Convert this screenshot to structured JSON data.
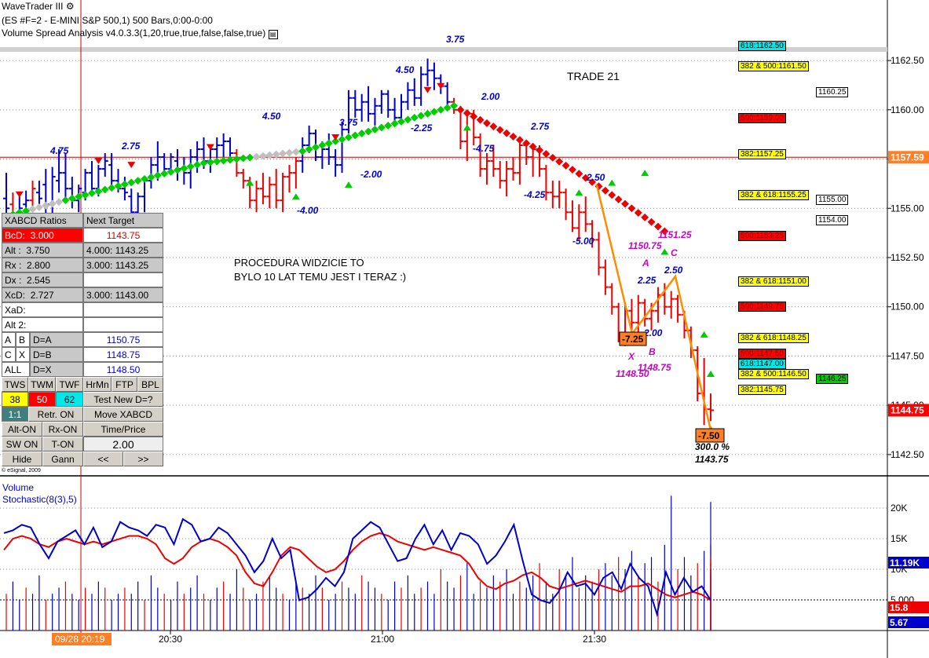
{
  "header": {
    "title": "WaveTrader III",
    "line2": "(ES #F=2 - E-MINI S&P 500,1) 500 Bars,0:00-0:00",
    "line3": "Volume Spread Analysis v4.0.3.3(1,20,true,true,false,false,true)"
  },
  "copyright": "© eSignal, 2009",
  "annotations": {
    "trade": "TRADE 21",
    "note1": "PROCEDURA WIDZICIE TO",
    "note2": "BYLO 10 LAT TEMU JEST I TERAZ :)"
  },
  "price_axis": {
    "ticks": [
      "1162.50",
      "1160.00",
      "1157.50",
      "1155.00",
      "1152.50",
      "1150.00",
      "1147.50",
      "1145.00",
      "1142.50"
    ],
    "current": "1157.59",
    "last": "1144.75"
  },
  "volume_axis": {
    "ticks": [
      "20K",
      "15K",
      "10K",
      "5,000"
    ],
    "vol_value": "11.19K",
    "stoch1": "15.8",
    "stoch2": "5.67"
  },
  "time_axis": {
    "ticks": [
      "20:30",
      "21:00",
      "21:30"
    ],
    "cursor": "09/28 20:19"
  },
  "lower_labels": {
    "volume": "Volume",
    "stoch": "Stochastic(8(3),5)"
  },
  "fib_tags": [
    {
      "text": "618:1162.50",
      "bg": "#00e8e8"
    },
    {
      "text": "382 & 500:1161.50",
      "bg": "#ffff00"
    },
    {
      "text": "1160.25",
      "bg": "#ffffff"
    },
    {
      "text": "500:1159.00",
      "bg": "#ff0000"
    },
    {
      "text": "382:1157.25",
      "bg": "#ffff00"
    },
    {
      "text": "382 & 618:1155.25",
      "bg": "#ffff00"
    },
    {
      "text": "1155.00",
      "bg": "#ffffff"
    },
    {
      "text": "1154.00",
      "bg": "#ffffff"
    },
    {
      "text": "500:1153.25",
      "bg": "#ff0000"
    },
    {
      "text": "382 & 618:1151.00",
      "bg": "#ffff00"
    },
    {
      "text": "500:1149.75",
      "bg": "#ff0000"
    },
    {
      "text": "382 & 618:1148.25",
      "bg": "#ffff00"
    },
    {
      "text": "500:1147.50",
      "bg": "#ff0000"
    },
    {
      "text": "618:1147.00",
      "bg": "#00e8e8"
    },
    {
      "text": "382 & 500:1146.50",
      "bg": "#ffff00"
    },
    {
      "text": "1146.25",
      "bg": "#00cc00"
    },
    {
      "text": "382:1145.75",
      "bg": "#ffff00"
    }
  ],
  "panel": {
    "h1": "XABCD Ratios",
    "h2": "Next Target",
    "bcd_label": "BcD:",
    "bcd_val": "3.000",
    "bcd_target": "1143.75",
    "alt_label": "Alt  :",
    "alt_val": "3.750",
    "alt_target": "4.000: 1143.25",
    "rx_label": "Rx   :",
    "rx_val": "2.800",
    "rx_target": "3.000: 1143.25",
    "dx_label": "Dx   :",
    "dx_val": "2.545",
    "xcd_label": "XcD:",
    "xcd_val": "2.727",
    "xcd_target": "3.000: 1143.00",
    "xad_label": "XaD:",
    "alt2_label": "Alt 2:",
    "a": "A",
    "b": "B",
    "da": "D=A",
    "da_val": "1150.75",
    "c": "C",
    "x": "X",
    "db": "D=B",
    "db_val": "1148.75",
    "all": "ALL",
    "dx2": "D=X",
    "dx_val2": "1148.50",
    "tws": "TWS",
    "twm": "TWM",
    "twf": "TWF",
    "hrmn": "HrMn",
    "ftp": "FTP",
    "bpl": "BPL",
    "n38": "38",
    "n50": "50",
    "n62": "62",
    "testd": "Test New D=?",
    "r11": "1:1",
    "retr": "Retr. ON",
    "move": "Move XABCD",
    "alton": "Alt-ON",
    "rxon": "Rx-ON",
    "timeprice": "Time/Price",
    "swon": "SW ON",
    "ton": "T-ON",
    "tp_val": "2.00",
    "hide": "Hide",
    "gann": "Gann",
    "prev": "<<",
    "next": ">>"
  },
  "chart_data": {
    "type": "bar",
    "symbol": "ES #F=2 - E-MINI S&P 500",
    "ylim": [
      1141.5,
      1163.5
    ],
    "ohlc_bars": [
      [
        1155.5,
        1154.2,
        1156.8,
        1155.0
      ],
      [
        1155.2,
        1154.0,
        1155.8,
        1154.5
      ],
      [
        1154.8,
        1154.2,
        1155.6,
        1155.0
      ],
      [
        1155.2,
        1154.6,
        1155.9,
        1155.4
      ],
      [
        1155.4,
        1154.8,
        1156.4,
        1156.0
      ],
      [
        1155.8,
        1155.0,
        1156.4,
        1155.5
      ],
      [
        1156.2,
        1154.4,
        1157.0,
        1155.2
      ],
      [
        1155.2,
        1154.6,
        1157.1,
        1156.6
      ],
      [
        1156.4,
        1155.8,
        1158.0,
        1156.8
      ],
      [
        1156.8,
        1155.4,
        1157.8,
        1156.0
      ],
      [
        1156.0,
        1155.0,
        1156.6,
        1155.4
      ],
      [
        1155.4,
        1154.8,
        1156.2,
        1156.0
      ],
      [
        1155.8,
        1155.4,
        1157.0,
        1156.8
      ],
      [
        1156.8,
        1155.6,
        1157.4,
        1156.0
      ],
      [
        1156.0,
        1155.6,
        1157.2,
        1157.0
      ],
      [
        1157.0,
        1156.6,
        1157.8,
        1157.4
      ],
      [
        1157.2,
        1156.0,
        1157.8,
        1156.4
      ],
      [
        1156.4,
        1155.8,
        1157.0,
        1156.0
      ],
      [
        1156.0,
        1155.4,
        1156.6,
        1155.8
      ],
      [
        1155.6,
        1154.4,
        1156.0,
        1154.8
      ],
      [
        1154.8,
        1154.2,
        1155.8,
        1155.6
      ],
      [
        1155.6,
        1154.8,
        1156.6,
        1156.4
      ],
      [
        1156.4,
        1156.0,
        1157.6,
        1157.2
      ],
      [
        1157.2,
        1156.4,
        1158.4,
        1157.6
      ],
      [
        1157.6,
        1156.6,
        1157.8,
        1157.0
      ],
      [
        1157.0,
        1156.8,
        1157.8,
        1157.6
      ],
      [
        1157.4,
        1156.4,
        1158.0,
        1157.0
      ],
      [
        1157.0,
        1156.2,
        1157.6,
        1156.8
      ],
      [
        1156.8,
        1156.0,
        1158.0,
        1157.6
      ],
      [
        1157.6,
        1156.8,
        1158.4,
        1158.0
      ],
      [
        1158.0,
        1157.0,
        1158.6,
        1157.4
      ],
      [
        1157.4,
        1156.8,
        1158.2,
        1158.0
      ],
      [
        1158.0,
        1157.2,
        1158.6,
        1158.2
      ],
      [
        1158.2,
        1157.6,
        1158.8,
        1158.4
      ],
      [
        1158.4,
        1157.6,
        1158.6,
        1157.8
      ],
      [
        1157.8,
        1156.6,
        1158.0,
        1156.8
      ],
      [
        1156.8,
        1156.0,
        1157.0,
        1156.4
      ],
      [
        1156.4,
        1155.0,
        1156.6,
        1155.4
      ],
      [
        1155.4,
        1154.8,
        1156.4,
        1156.0
      ],
      [
        1156.0,
        1155.2,
        1156.8,
        1155.6
      ],
      [
        1155.6,
        1155.0,
        1156.6,
        1156.2
      ],
      [
        1156.2,
        1155.0,
        1157.0,
        1155.4
      ],
      [
        1155.4,
        1154.8,
        1156.8,
        1156.6
      ],
      [
        1156.6,
        1155.8,
        1157.2,
        1156.8
      ],
      [
        1156.8,
        1156.0,
        1157.6,
        1157.4
      ],
      [
        1157.4,
        1156.8,
        1158.6,
        1158.2
      ],
      [
        1158.2,
        1157.8,
        1159.2,
        1158.8
      ],
      [
        1158.8,
        1157.4,
        1159.0,
        1157.6
      ],
      [
        1157.6,
        1157.0,
        1158.4,
        1158.0
      ],
      [
        1158.0,
        1157.2,
        1158.8,
        1157.6
      ],
      [
        1157.6,
        1156.6,
        1158.0,
        1157.2
      ],
      [
        1157.2,
        1156.8,
        1159.4,
        1159.0
      ],
      [
        1159.0,
        1158.8,
        1161.0,
        1160.6
      ],
      [
        1160.6,
        1159.6,
        1161.0,
        1160.0
      ],
      [
        1160.0,
        1159.4,
        1160.8,
        1160.4
      ],
      [
        1160.4,
        1159.4,
        1161.2,
        1159.8
      ],
      [
        1159.8,
        1159.2,
        1160.6,
        1160.2
      ],
      [
        1160.2,
        1159.8,
        1161.0,
        1160.8
      ],
      [
        1160.8,
        1159.6,
        1161.0,
        1160.0
      ],
      [
        1160.0,
        1159.2,
        1160.6,
        1159.6
      ],
      [
        1159.6,
        1159.4,
        1160.8,
        1160.4
      ],
      [
        1160.4,
        1160.0,
        1161.4,
        1161.0
      ],
      [
        1161.0,
        1160.2,
        1161.6,
        1160.6
      ],
      [
        1160.6,
        1160.2,
        1162.2,
        1161.8
      ],
      [
        1161.8,
        1161.2,
        1162.6,
        1162.0
      ],
      [
        1162.0,
        1161.0,
        1162.4,
        1161.6
      ],
      [
        1161.6,
        1160.8,
        1161.8,
        1161.2
      ],
      [
        1161.2,
        1160.2,
        1161.4,
        1160.4
      ],
      [
        1160.4,
        1159.8,
        1160.6,
        1160.0
      ],
      [
        1160.0,
        1158.0,
        1160.2,
        1158.4
      ],
      [
        1158.4,
        1157.4,
        1160.0,
        1159.8
      ],
      [
        1159.8,
        1158.2,
        1160.0,
        1158.6
      ],
      [
        1158.6,
        1156.6,
        1158.8,
        1157.0
      ],
      [
        1157.0,
        1156.2,
        1157.8,
        1157.4
      ],
      [
        1157.4,
        1156.6,
        1158.2,
        1157.0
      ],
      [
        1157.0,
        1156.0,
        1157.4,
        1156.4
      ],
      [
        1156.4,
        1155.6,
        1157.4,
        1157.0
      ],
      [
        1157.0,
        1156.4,
        1157.6,
        1156.8
      ],
      [
        1156.8,
        1156.2,
        1158.6,
        1158.2
      ],
      [
        1158.2,
        1157.2,
        1158.4,
        1157.6
      ],
      [
        1157.6,
        1156.6,
        1158.2,
        1158.0
      ],
      [
        1158.0,
        1156.6,
        1158.2,
        1157.0
      ],
      [
        1157.0,
        1155.4,
        1157.2,
        1155.8
      ],
      [
        1155.8,
        1155.0,
        1156.4,
        1155.6
      ],
      [
        1155.6,
        1155.0,
        1156.4,
        1155.8
      ],
      [
        1155.8,
        1154.4,
        1156.0,
        1154.8
      ],
      [
        1154.8,
        1153.8,
        1155.4,
        1154.0
      ],
      [
        1154.0,
        1153.4,
        1155.2,
        1154.8
      ],
      [
        1154.8,
        1153.8,
        1155.6,
        1154.2
      ],
      [
        1154.2,
        1153.0,
        1154.4,
        1153.4
      ],
      [
        1153.4,
        1151.6,
        1153.8,
        1152.0
      ],
      [
        1152.0,
        1150.6,
        1152.4,
        1151.0
      ],
      [
        1151.0,
        1149.6,
        1151.2,
        1150.0
      ],
      [
        1150.0,
        1148.2,
        1150.2,
        1148.6
      ],
      [
        1148.6,
        1148.0,
        1150.2,
        1149.8
      ],
      [
        1149.8,
        1148.8,
        1150.4,
        1149.2
      ],
      [
        1149.2,
        1148.6,
        1150.6,
        1150.2
      ],
      [
        1150.2,
        1149.0,
        1150.4,
        1149.4
      ],
      [
        1149.4,
        1148.8,
        1150.2,
        1149.8
      ],
      [
        1149.8,
        1149.2,
        1151.0,
        1150.6
      ],
      [
        1150.6,
        1149.6,
        1151.2,
        1150.0
      ],
      [
        1150.0,
        1149.4,
        1150.8,
        1150.4
      ],
      [
        1150.4,
        1149.2,
        1150.6,
        1149.6
      ],
      [
        1149.6,
        1148.4,
        1149.8,
        1148.8
      ],
      [
        1148.8,
        1147.4,
        1149.0,
        1147.8
      ],
      [
        1147.8,
        1145.2,
        1148.0,
        1145.6
      ],
      [
        1145.6,
        1144.0,
        1147.4,
        1144.8
      ],
      [
        1144.8,
        1144.2,
        1145.6,
        1144.75
      ]
    ],
    "bar_colors_note": "blue up-trend bars, red down-trend bars",
    "wave_labels": [
      {
        "t": "4.75",
        "c": "#0000cc"
      },
      {
        "t": "2.75",
        "c": "#0000cc"
      },
      {
        "t": "4.50",
        "c": "#0000cc"
      },
      {
        "t": "3.75",
        "c": "#0000cc"
      },
      {
        "t": "4.50",
        "c": "#0000cc"
      },
      {
        "t": "3.75",
        "c": "#0000cc"
      },
      {
        "t": "2.00",
        "c": "#0000cc"
      },
      {
        "t": "2.75",
        "c": "#0000cc"
      },
      {
        "t": "2.50",
        "c": "#0000cc"
      },
      {
        "t": "2.25",
        "c": "#0000cc"
      },
      {
        "t": "2.50",
        "c": "#0000cc"
      },
      {
        "t": "2.00",
        "c": "#0000cc"
      },
      {
        "t": "-4.00",
        "c": "#0000cc"
      },
      {
        "t": "-2.00",
        "c": "#0000cc"
      },
      {
        "t": "-2.25",
        "c": "#0000cc"
      },
      {
        "t": "-4.75",
        "c": "#0000cc"
      },
      {
        "t": "-4.25",
        "c": "#0000cc"
      },
      {
        "t": "-5.00",
        "c": "#0000cc"
      },
      {
        "t": "1150.75",
        "c": "#cc00cc"
      },
      {
        "t": "1151.25",
        "c": "#cc00cc"
      },
      {
        "t": "A",
        "c": "#cc00cc"
      },
      {
        "t": "C",
        "c": "#cc00cc"
      },
      {
        "t": "B",
        "c": "#cc00cc"
      },
      {
        "t": "X",
        "c": "#cc00cc"
      },
      {
        "t": "1148.50",
        "c": "#cc00cc"
      },
      {
        "t": "1148.75",
        "c": "#cc00cc"
      },
      {
        "t": "300.0 %",
        "c": "#000000"
      },
      {
        "t": "1143.75",
        "c": "#000000"
      }
    ],
    "box_labels": [
      "-7.25",
      "-7.50"
    ],
    "stochastic": {
      "blue": [
        68,
        70,
        74,
        72,
        60,
        50,
        62,
        66,
        70,
        60,
        72,
        58,
        62,
        76,
        72,
        70,
        66,
        74,
        72,
        60,
        78,
        74,
        62,
        64,
        72,
        68,
        60,
        52,
        40,
        48,
        64,
        50,
        56,
        20,
        22,
        28,
        36,
        30,
        40,
        64,
        70,
        76,
        72,
        60,
        48,
        50,
        64,
        74,
        60,
        70,
        56,
        68,
        66,
        60,
        46,
        52,
        62,
        74,
        48,
        24,
        20,
        18,
        26,
        40,
        30,
        32,
        24,
        36,
        40,
        28,
        46,
        36,
        30,
        10,
        40,
        24,
        36,
        26,
        30,
        20
      ],
      "red": [
        56,
        64,
        66,
        64,
        60,
        58,
        62,
        64,
        62,
        60,
        62,
        60,
        62,
        64,
        66,
        66,
        64,
        60,
        50,
        46,
        50,
        58,
        62,
        64,
        62,
        58,
        52,
        40,
        32,
        30,
        40,
        52,
        58,
        56,
        50,
        44,
        40,
        42,
        48,
        56,
        62,
        66,
        68,
        66,
        62,
        60,
        58,
        56,
        58,
        56,
        54,
        52,
        46,
        36,
        30,
        28,
        32,
        34,
        38,
        40,
        36,
        30,
        28,
        30,
        32,
        34,
        32,
        30,
        28,
        26,
        30,
        30,
        32,
        28,
        24,
        22,
        24,
        26,
        24,
        20
      ]
    },
    "volume": [
      6,
      8,
      5,
      7,
      6,
      9,
      5,
      6,
      7,
      8,
      6,
      5,
      7,
      6,
      8,
      7,
      5,
      6,
      7,
      6,
      8,
      5,
      9,
      7,
      6,
      5,
      8,
      6,
      7,
      9,
      6,
      5,
      7,
      8,
      6,
      10,
      7,
      5,
      6,
      8,
      9,
      7,
      6,
      5,
      8,
      7,
      6,
      9,
      7,
      5,
      6,
      8,
      7,
      6,
      9,
      8,
      7,
      6,
      5,
      8,
      7,
      9,
      6,
      7,
      8,
      6,
      10,
      8,
      7,
      9,
      11,
      6,
      8,
      7,
      9,
      8,
      10,
      6,
      8,
      7,
      9,
      11,
      8,
      6,
      10,
      9,
      12,
      7,
      9,
      8,
      10,
      11,
      9,
      12,
      10,
      13,
      9,
      11,
      12,
      8,
      14,
      22,
      10,
      12,
      9,
      11,
      13,
      10,
      12,
      9,
      11,
      14,
      21,
      10,
      12
    ]
  }
}
